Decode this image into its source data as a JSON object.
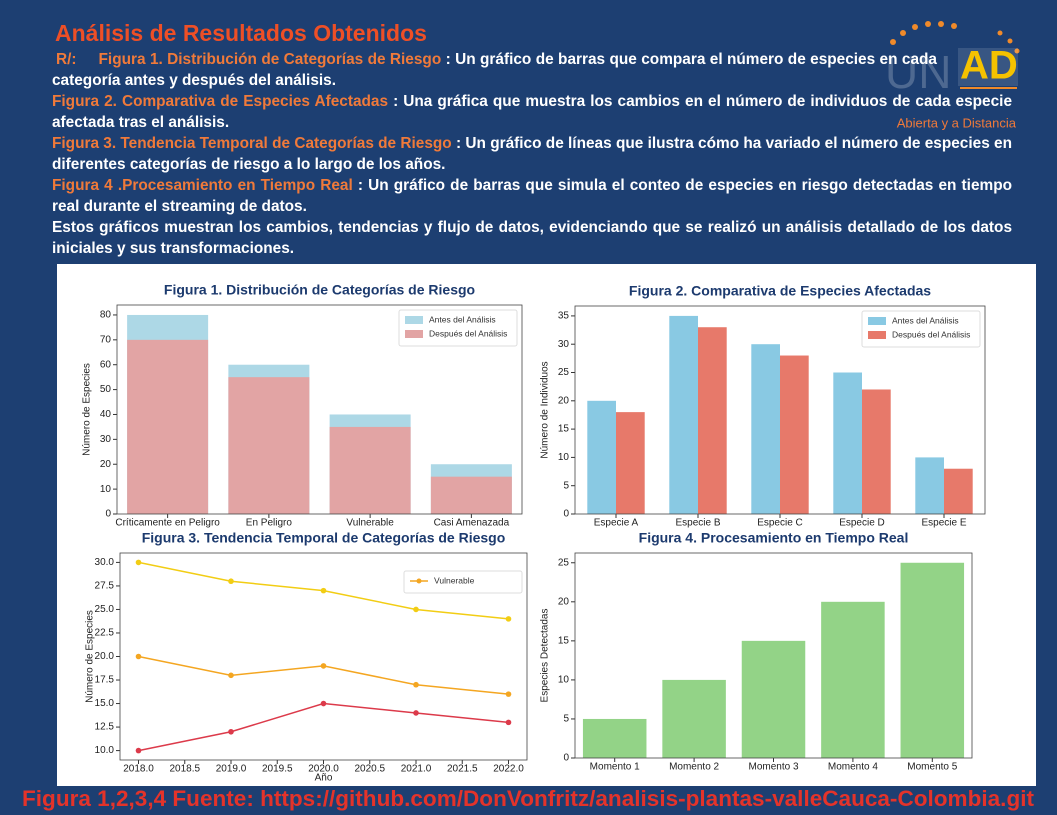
{
  "header": {
    "title": "Análisis de Resultados Obtenidos",
    "logo": {
      "left": "UN",
      "right": "AD",
      "tagline": "Abierta y a Distancia"
    }
  },
  "paragraphs": [
    {
      "prefix": "R/:",
      "label": "Figura 1. Distribución de Categorías de Riesgo",
      "text": ": Un gráfico de barras que compara el número de especies en cada categoría antes y después del análisis."
    },
    {
      "label": "Figura 2. Comparativa de Especies Afectadas",
      "text": ": Una gráfica que muestra los cambios en el número de individuos de cada especie afectada tras el análisis."
    },
    {
      "label": "Figura 3. Tendencia Temporal de Categorías de Riesgo",
      "text": ": Un gráfico de líneas que ilustra cómo ha variado el número de especies en diferentes categorías de riesgo a lo largo de los años."
    },
    {
      "label": "Figura 4 .Procesamiento en Tiempo Real",
      "text": ": Un gráfico de barras que simula el conteo de especies en riesgo detectadas en tiempo real durante el streaming de datos."
    },
    {
      "text": "Estos gráficos muestran los cambios, tendencias y flujo de datos, evidenciando que se realizó un análisis detallado de los datos iniciales y sus transformaciones."
    }
  ],
  "chart_data": [
    {
      "type": "bar",
      "barmode": "overlay",
      "title": "Figura 1. Distribución de Categorías de Riesgo",
      "ylabel": "Número de Especies",
      "categories": [
        "Críticamente en Peligro",
        "En Peligro",
        "Vulnerable",
        "Casi Amenazada"
      ],
      "series": [
        {
          "name": "Antes del Análisis",
          "color": "#add8e6",
          "values": [
            80,
            60,
            40,
            20
          ]
        },
        {
          "name": "Después del Análisis",
          "color": "#e2a4a4",
          "values": [
            70,
            55,
            35,
            15
          ]
        }
      ],
      "ylim": [
        0,
        84
      ],
      "yticks": [
        0,
        10,
        20,
        30,
        40,
        50,
        60,
        70,
        80
      ],
      "legend": "upper right"
    },
    {
      "type": "bar",
      "barmode": "group",
      "title": "Figura 2. Comparativa de Especies Afectadas",
      "ylabel": "Número de Individuos",
      "categories": [
        "Especie A",
        "Especie B",
        "Especie C",
        "Especie D",
        "Especie E"
      ],
      "series": [
        {
          "name": "Antes del Análisis",
          "color": "#89c9e3",
          "values": [
            20,
            35,
            30,
            25,
            10
          ]
        },
        {
          "name": "Después del Análisis",
          "color": "#e7796a",
          "values": [
            18,
            33,
            28,
            22,
            8
          ]
        }
      ],
      "ylim": [
        0,
        36.75
      ],
      "yticks": [
        0,
        5,
        10,
        15,
        20,
        25,
        30,
        35
      ],
      "legend": "upper right"
    },
    {
      "type": "line",
      "title": "Figura 3. Tendencia Temporal de Categorías de Riesgo",
      "xlabel": "Año",
      "ylabel": "Número de Especies",
      "x": [
        2018,
        2019,
        2020,
        2021,
        2022
      ],
      "series": [
        {
          "color": "#f2cd14",
          "values": [
            30,
            28,
            27,
            25,
            24
          ]
        },
        {
          "name": "Vulnerable",
          "color": "#f4a621",
          "values": [
            20,
            18,
            19,
            17,
            16
          ]
        },
        {
          "color": "#dc3a4a",
          "values": [
            10,
            12,
            15,
            14,
            13
          ]
        }
      ],
      "xlim": [
        2017.8,
        2022.2
      ],
      "xticks": [
        {
          "value": 2018,
          "label": "2018.0"
        },
        {
          "value": 2018.5,
          "label": "2018.5"
        },
        {
          "value": 2019,
          "label": "2019.0"
        },
        {
          "value": 2019.5,
          "label": "2019.5"
        },
        {
          "value": 2020,
          "label": "2020.0"
        },
        {
          "value": 2020.5,
          "label": "2020.5"
        },
        {
          "value": 2021,
          "label": "2021.0"
        },
        {
          "value": 2021.5,
          "label": "2021.5"
        },
        {
          "value": 2022,
          "label": "2022.0"
        }
      ],
      "ylim": [
        9.0,
        31.0
      ],
      "yticks": [
        {
          "value": 10,
          "label": "10.0"
        },
        {
          "value": 12.5,
          "label": "12.5"
        },
        {
          "value": 15,
          "label": "15.0"
        },
        {
          "value": 17.5,
          "label": "17.5"
        },
        {
          "value": 20,
          "label": "20.0"
        },
        {
          "value": 22.5,
          "label": "22.5"
        },
        {
          "value": 25,
          "label": "25.0"
        },
        {
          "value": 27.5,
          "label": "27.5"
        },
        {
          "value": 30,
          "label": "30.0"
        }
      ],
      "legend": "upper right"
    },
    {
      "type": "bar",
      "title": "Figura 4. Procesamiento en Tiempo Real",
      "ylabel": "Especies Detectadas",
      "categories": [
        "Momento 1",
        "Momento 2",
        "Momento 3",
        "Momento 4",
        "Momento 5"
      ],
      "values": [
        5,
        10,
        15,
        20,
        25
      ],
      "color": "#93d387",
      "ylim": [
        0,
        26.25
      ],
      "yticks": [
        0,
        5,
        10,
        15,
        20,
        25
      ]
    }
  ],
  "footer": "Figura 1,2,3,4 Fuente: https://github.com/DonVonfritz/analisis-plantas-valleCauca-Colombia.git"
}
